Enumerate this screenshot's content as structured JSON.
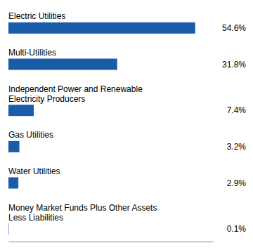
{
  "chart_data": {
    "type": "bar",
    "orientation": "horizontal",
    "categories": [
      "Electric Utilities",
      "Multi-Utilities",
      "Independent Power and Renewable\nElectricity Producers",
      "Gas Utilities",
      "Water Utilities",
      "Money Market Funds Plus Other Assets\nLess Liabilities"
    ],
    "values": [
      54.6,
      31.8,
      7.4,
      3.2,
      2.9,
      0.1
    ],
    "value_labels": [
      "54.6%",
      "31.8%",
      "7.4%",
      "3.2%",
      "2.9%",
      "0.1%"
    ],
    "data_labels": true,
    "color": "#1a5ca8",
    "xlim": [
      0,
      60
    ],
    "tick_labels": false,
    "grid": false
  }
}
